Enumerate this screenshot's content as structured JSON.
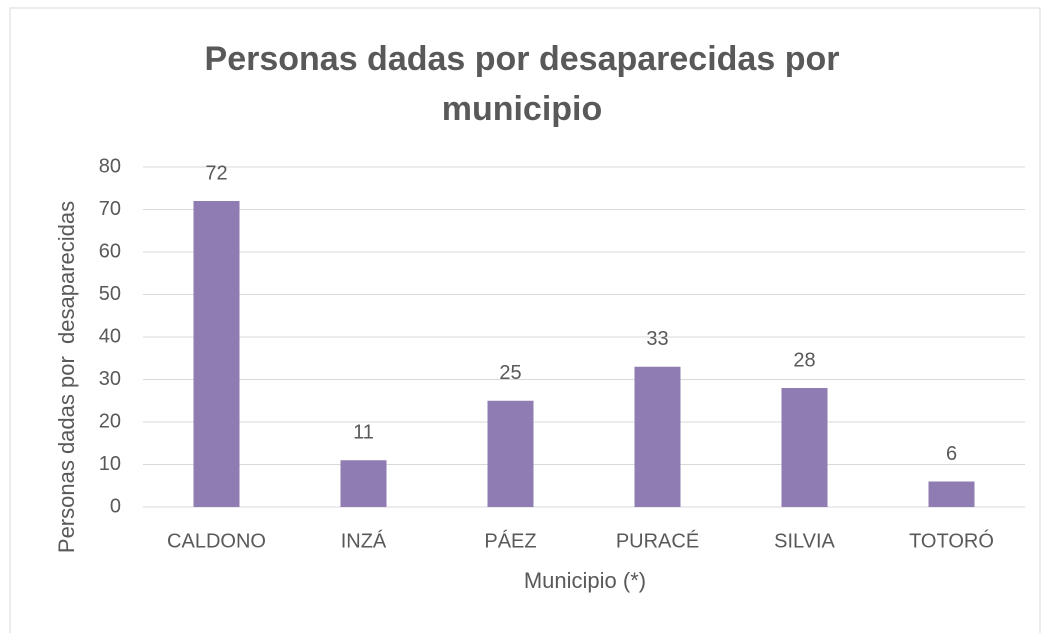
{
  "chart_data": {
    "type": "bar",
    "title": "Personas dadas por desaparecidas por municipio",
    "x_label": "Municipio (*)",
    "y_label": "Personas dadas por  desaparecidas",
    "categories": [
      "CALDONO",
      "INZÁ",
      "PÁEZ",
      "PURACÉ",
      "SILVIA",
      "TOTORÓ"
    ],
    "values": [
      72,
      11,
      25,
      33,
      28,
      6
    ],
    "color": "#8e7cb3",
    "ylim": [
      0,
      80
    ],
    "yticks": [
      0,
      10,
      20,
      30,
      40,
      50,
      60,
      70,
      80
    ],
    "grid": true
  }
}
